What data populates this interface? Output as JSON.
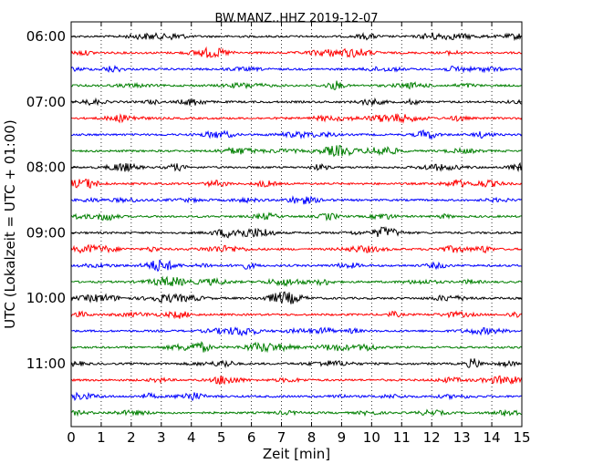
{
  "chart_data": {
    "type": "line",
    "title": "BW.MANZ..HHZ 2019-12-07",
    "xlabel": "Zeit  [min]",
    "ylabel": "UTC (Lokalzeit = UTC + 01:00)",
    "xlim": [
      0,
      15
    ],
    "x_ticks": [
      "0",
      "1",
      "2",
      "3",
      "4",
      "5",
      "6",
      "7",
      "8",
      "9",
      "10",
      "11",
      "12",
      "13",
      "14",
      "15"
    ],
    "y_ticks": [
      "06:00",
      "07:00",
      "08:00",
      "09:00",
      "10:00",
      "11:00"
    ],
    "grid": "vertical-dotted",
    "trace_colors": [
      "#000000",
      "#ff0000",
      "#0000ff",
      "#007f00"
    ],
    "trace_start_times": [
      "06:00",
      "06:15",
      "06:30",
      "06:45",
      "07:00",
      "07:15",
      "07:30",
      "07:45",
      "08:00",
      "08:15",
      "08:30",
      "08:45",
      "09:00",
      "09:15",
      "09:30",
      "09:45",
      "10:00",
      "10:15",
      "10:30",
      "10:45",
      "11:00",
      "11:15",
      "11:30",
      "11:45"
    ]
  }
}
